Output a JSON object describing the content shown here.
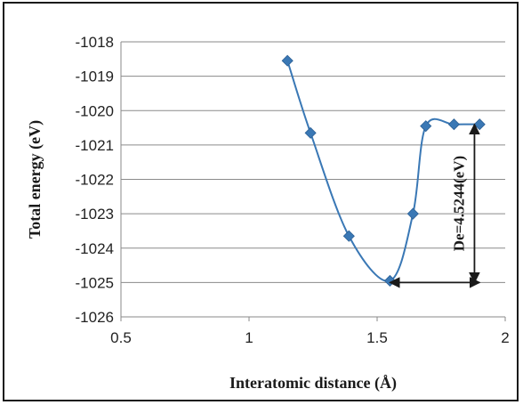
{
  "chart_data": {
    "type": "scatter",
    "title": "",
    "xlabel": "Interatomic distance (Å)",
    "ylabel": "Total energy (eV)",
    "xlim": [
      0.5,
      2
    ],
    "ylim": [
      -1026,
      -1018
    ],
    "xticks": [
      0.5,
      1,
      1.5,
      2
    ],
    "yticks": [
      -1018,
      -1019,
      -1020,
      -1021,
      -1022,
      -1023,
      -1024,
      -1025,
      -1026
    ],
    "grid": "horizontal",
    "legend": "none",
    "series": [
      {
        "color": "#3a78b5",
        "marker": "diamond",
        "smooth_line": true,
        "x": [
          1.15,
          1.24,
          1.39,
          1.55,
          1.64,
          1.69,
          1.8,
          1.9
        ],
        "y": [
          -1018.55,
          -1020.65,
          -1023.65,
          -1024.95,
          -1023.0,
          -1020.45,
          -1020.4,
          -1020.4
        ]
      }
    ],
    "annotations": [
      {
        "label": "De=4.5244(eV)",
        "type": "vertical-double-arrow",
        "x": 1.88,
        "y_from": -1020.4,
        "y_to": -1025.0
      },
      {
        "type": "horizontal-double-arrow",
        "y": -1025.0,
        "x_from": 1.55,
        "x_to": 1.9
      }
    ]
  }
}
